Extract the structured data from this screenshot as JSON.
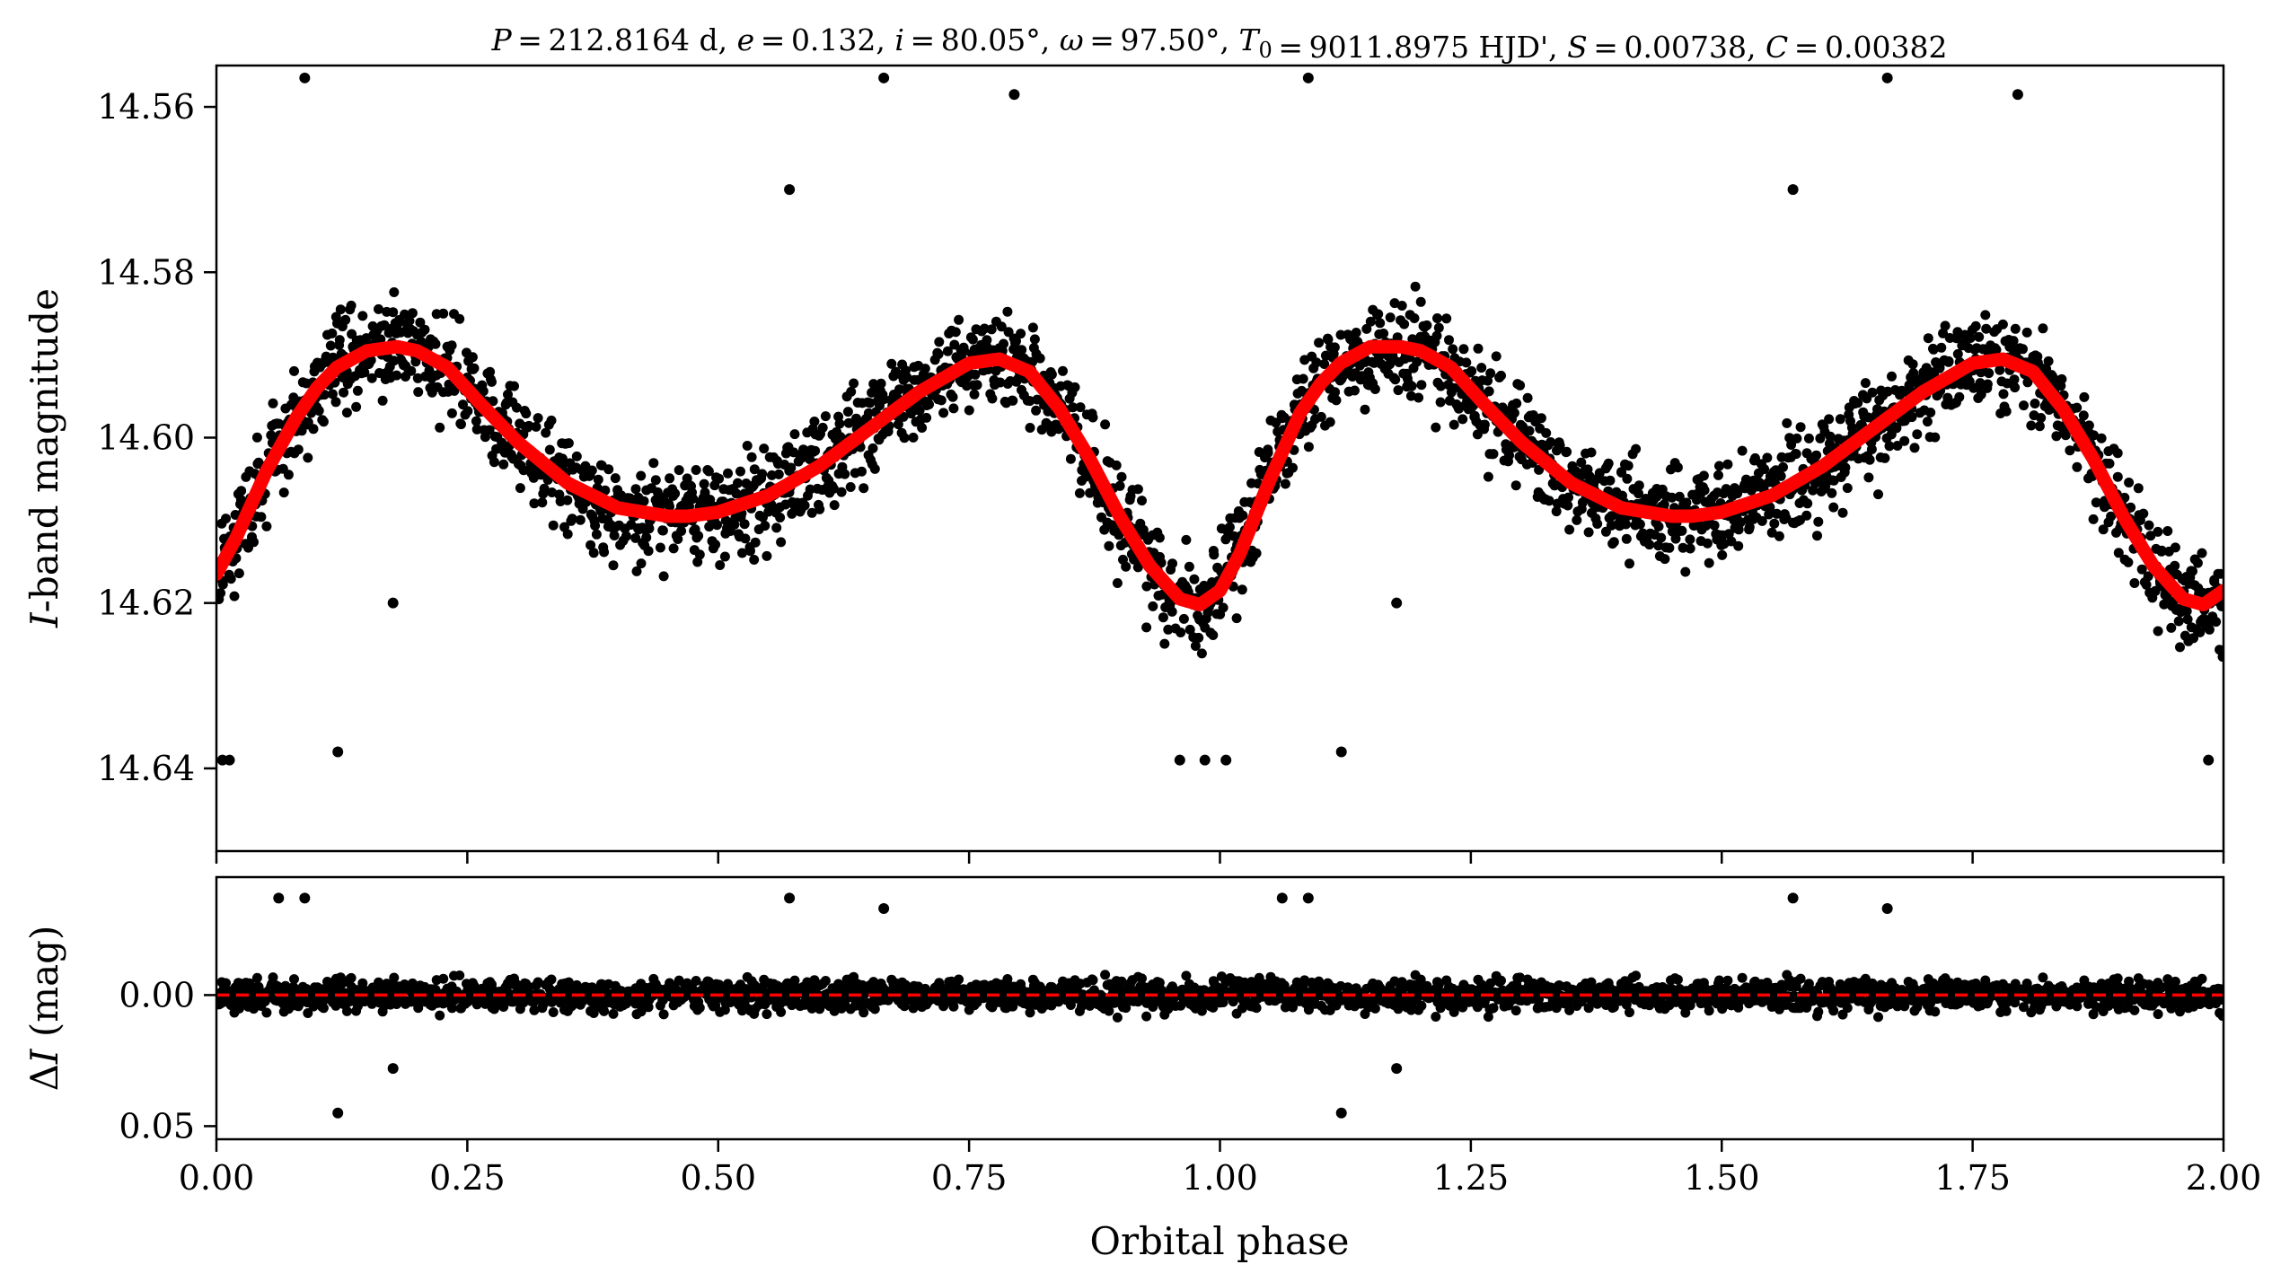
{
  "chart_data": [
    {
      "panel": "light-curve",
      "type": "scatter",
      "title": "P = 212.8164 d, e = 0.132, i = 80.05°, ω = 97.50°, T0 = 9011.8975 HJD', S = 0.00738, C = 0.00382",
      "ylabel": "I-band magnitude",
      "xlabel": "",
      "ylim": [
        14.65,
        14.555
      ],
      "y_inverted": true,
      "xlim": [
        0.0,
        2.0
      ],
      "yticks": [
        "14.56",
        "14.58",
        "14.60",
        "14.62",
        "14.64"
      ],
      "x": [
        0.0,
        0.02,
        0.05,
        0.08,
        0.1,
        0.12,
        0.15,
        0.18,
        0.2,
        0.23,
        0.26,
        0.3,
        0.35,
        0.4,
        0.45,
        0.47,
        0.5,
        0.55,
        0.6,
        0.65,
        0.7,
        0.75,
        0.78,
        0.81,
        0.84,
        0.87,
        0.9,
        0.93,
        0.96,
        0.98,
        1.0,
        1.02,
        1.05,
        1.08,
        1.1,
        1.12,
        1.15,
        1.18,
        1.2,
        1.23,
        1.26,
        1.3,
        1.35,
        1.4,
        1.45,
        1.47,
        1.5,
        1.55,
        1.6,
        1.65,
        1.7,
        1.75,
        1.78,
        1.81,
        1.84,
        1.87,
        1.9,
        1.93,
        1.96,
        1.98,
        2.0
      ],
      "series": [
        {
          "kind": "model",
          "color": "#ff0000",
          "values": [
            14.6165,
            14.612,
            14.604,
            14.5975,
            14.594,
            14.5915,
            14.5895,
            14.589,
            14.5895,
            14.5915,
            14.5955,
            14.6005,
            14.6055,
            14.6085,
            14.6095,
            14.6095,
            14.609,
            14.607,
            14.6035,
            14.599,
            14.5945,
            14.591,
            14.5905,
            14.592,
            14.5965,
            14.6025,
            14.6095,
            14.6155,
            14.6195,
            14.6202,
            14.6185,
            14.614,
            14.605,
            14.597,
            14.5935,
            14.591,
            14.589,
            14.589,
            14.5895,
            14.5915,
            14.5955,
            14.6005,
            14.6055,
            14.6085,
            14.6095,
            14.6095,
            14.609,
            14.607,
            14.6035,
            14.599,
            14.5945,
            14.591,
            14.5905,
            14.592,
            14.5965,
            14.6025,
            14.6095,
            14.6155,
            14.6195,
            14.6202,
            14.6185
          ]
        }
      ],
      "points_color": "#000000",
      "outliers": [
        {
          "x": 0.006,
          "y": 14.639
        },
        {
          "x": 0.013,
          "y": 14.639
        },
        {
          "x": 0.121,
          "y": 14.638
        },
        {
          "x": 0.088,
          "y": 14.5565
        },
        {
          "x": 0.176,
          "y": 14.62
        },
        {
          "x": 0.571,
          "y": 14.57
        },
        {
          "x": 0.665,
          "y": 14.5565
        },
        {
          "x": 0.795,
          "y": 14.5585
        },
        {
          "x": 0.96,
          "y": 14.639
        },
        {
          "x": 0.985,
          "y": 14.639
        },
        {
          "x": 1.006,
          "y": 14.639
        },
        {
          "x": 1.121,
          "y": 14.638
        },
        {
          "x": 1.088,
          "y": 14.5565
        },
        {
          "x": 1.176,
          "y": 14.62
        },
        {
          "x": 1.571,
          "y": 14.57
        },
        {
          "x": 1.665,
          "y": 14.5565
        },
        {
          "x": 1.795,
          "y": 14.5585
        },
        {
          "x": 1.985,
          "y": 14.639
        }
      ]
    },
    {
      "panel": "residuals",
      "type": "scatter",
      "ylabel": "ΔI (mag)",
      "xlabel": "Orbital phase",
      "ylim": [
        0.055,
        -0.045
      ],
      "y_inverted": true,
      "xlim": [
        0.0,
        2.0
      ],
      "yticks": [
        "0.00",
        "0.05"
      ],
      "xticks": [
        "0.00",
        "0.25",
        "0.50",
        "0.75",
        "1.00",
        "1.25",
        "1.50",
        "1.75",
        "2.00"
      ],
      "zero_line": {
        "value": 0.0,
        "color": "#ff0000",
        "style": "dashed"
      },
      "outliers": [
        {
          "x": 0.062,
          "y": -0.037
        },
        {
          "x": 0.088,
          "y": -0.037
        },
        {
          "x": 0.121,
          "y": 0.045
        },
        {
          "x": 0.176,
          "y": 0.028
        },
        {
          "x": 0.571,
          "y": -0.037
        },
        {
          "x": 0.665,
          "y": -0.033
        },
        {
          "x": 1.062,
          "y": -0.037
        },
        {
          "x": 1.088,
          "y": -0.037
        },
        {
          "x": 1.121,
          "y": 0.045
        },
        {
          "x": 1.176,
          "y": 0.028
        },
        {
          "x": 1.571,
          "y": -0.037
        },
        {
          "x": 1.665,
          "y": -0.033
        }
      ]
    }
  ]
}
